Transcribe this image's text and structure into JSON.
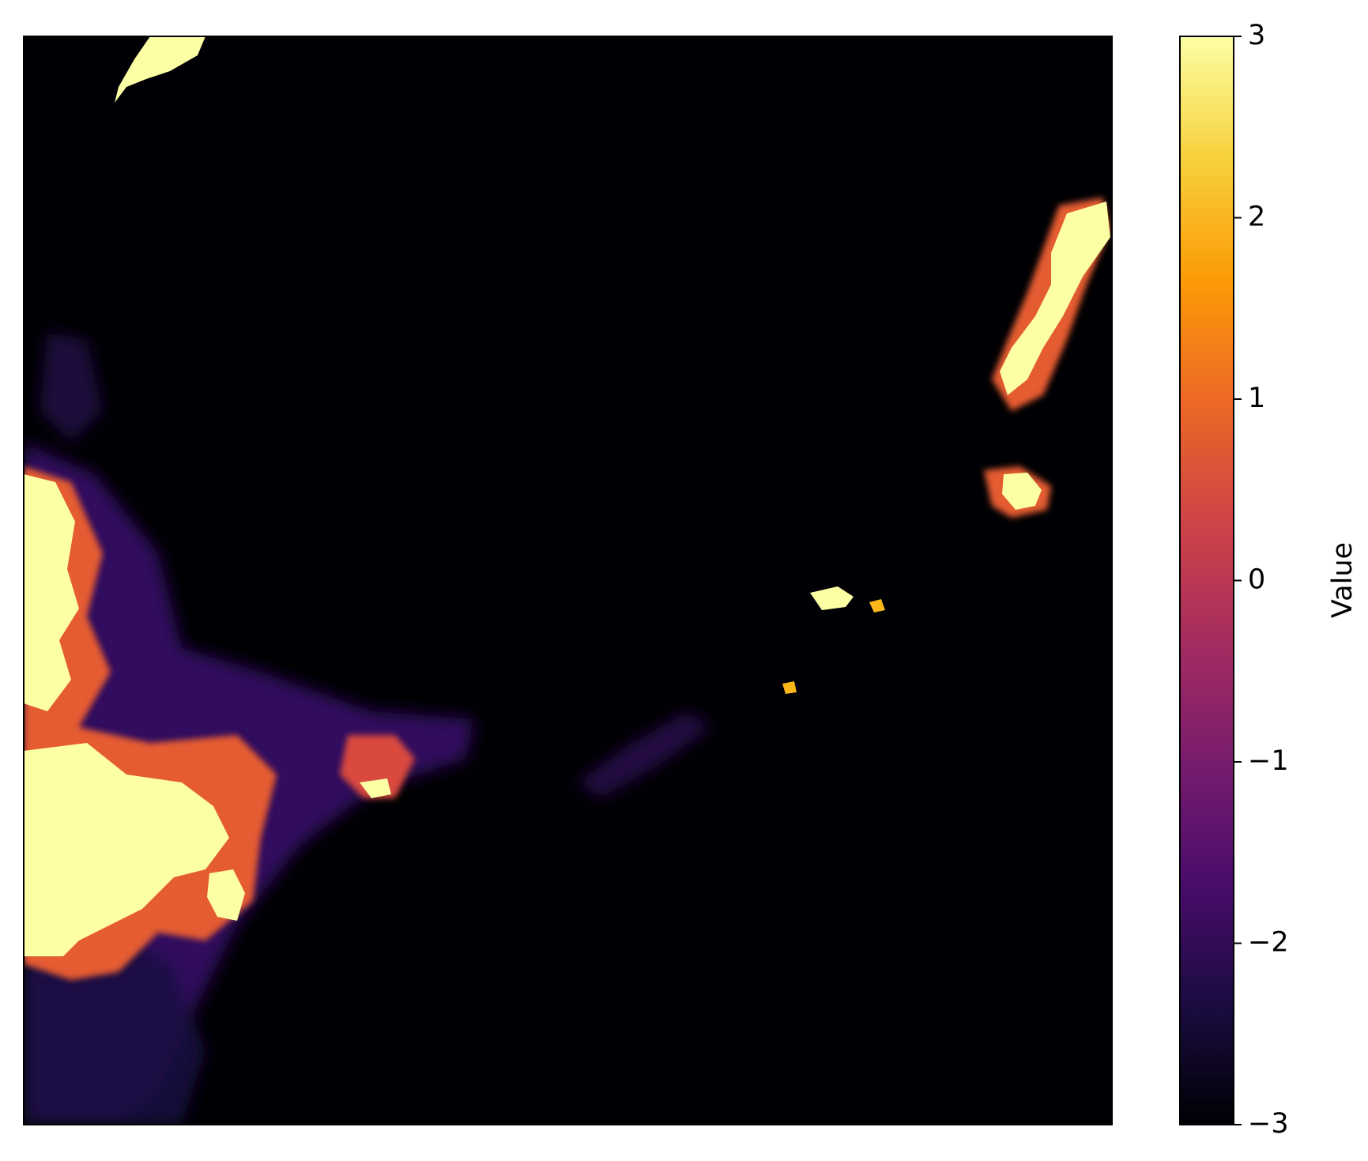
{
  "chart_data": {
    "type": "heatmap",
    "title": "",
    "xlabel": "",
    "ylabel": "",
    "xaxis_ticks_visible": false,
    "yaxis_ticks_visible": false,
    "colormap": "inferno",
    "colormap_stops": [
      "#000004",
      "#1b0c41",
      "#4a0c6b",
      "#781c6d",
      "#a52c60",
      "#cf4446",
      "#ed6925",
      "#fb9b06",
      "#f7d13d",
      "#fcffa4"
    ],
    "background_value": -3,
    "colorbar": {
      "label": "Value",
      "range": [
        -3,
        3
      ],
      "ticks": [
        3,
        2,
        1,
        0,
        -1,
        -2,
        -3
      ],
      "tick_labels": [
        "3",
        "2",
        "1",
        "0",
        "−1",
        "−2",
        "−3"
      ]
    },
    "features": [
      {
        "region": "upper-left edge streak",
        "peak_value": 3
      },
      {
        "region": "left edge mass",
        "peak_value": 3
      },
      {
        "region": "lower-left mass",
        "peak_value": 3
      },
      {
        "region": "left-center patch",
        "peak_value": 3
      },
      {
        "region": "center-right scattered blobs",
        "peak_value": 3
      },
      {
        "region": "right edge streak",
        "peak_value": 3
      },
      {
        "region": "right mid blob",
        "peak_value": 3
      },
      {
        "region": "bottom-left diffuse area",
        "peak_value": -2
      }
    ]
  }
}
